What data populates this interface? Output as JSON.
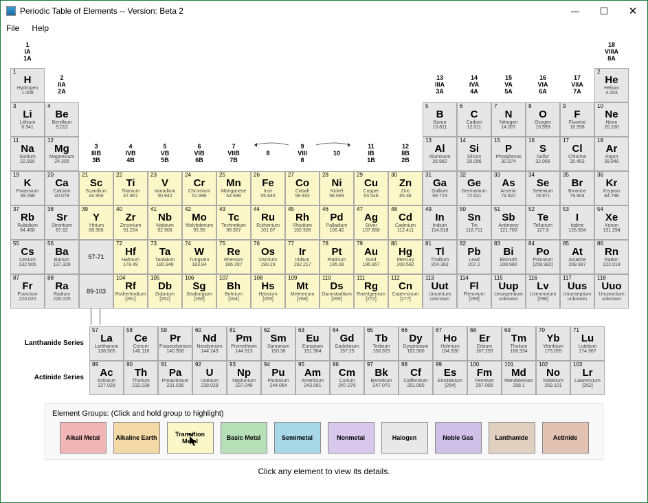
{
  "window": {
    "title": "Periodic Table of Elements  -- Version: Beta 2"
  },
  "menu": {
    "file": "File",
    "help": "Help"
  },
  "group_headers": [
    {
      "col": 0,
      "lines": [
        "1",
        "IA",
        "1A"
      ]
    },
    {
      "col": 1,
      "lines": [
        "2",
        "IIA",
        "2A"
      ]
    },
    {
      "col": 2,
      "lines": [
        "3",
        "IIIB",
        "3B"
      ]
    },
    {
      "col": 3,
      "lines": [
        "4",
        "IVB",
        "4B"
      ]
    },
    {
      "col": 4,
      "lines": [
        "5",
        "VB",
        "5B"
      ]
    },
    {
      "col": 5,
      "lines": [
        "6",
        "VIB",
        "6B"
      ]
    },
    {
      "col": 6,
      "lines": [
        "7",
        "VIIB",
        "7B"
      ]
    },
    {
      "col": 7,
      "lines": [
        "8",
        "",
        ""
      ]
    },
    {
      "col": 8,
      "lines": [
        "9",
        "VIII",
        "8"
      ]
    },
    {
      "col": 9,
      "lines": [
        "10",
        "",
        ""
      ]
    },
    {
      "col": 10,
      "lines": [
        "11",
        "IB",
        "1B"
      ]
    },
    {
      "col": 11,
      "lines": [
        "12",
        "IIB",
        "2B"
      ]
    },
    {
      "col": 12,
      "lines": [
        "13",
        "IIIA",
        "3A"
      ]
    },
    {
      "col": 13,
      "lines": [
        "14",
        "IVA",
        "4A"
      ]
    },
    {
      "col": 14,
      "lines": [
        "15",
        "VA",
        "5A"
      ]
    },
    {
      "col": 15,
      "lines": [
        "16",
        "VIA",
        "6A"
      ]
    },
    {
      "col": 16,
      "lines": [
        "17",
        "VIIA",
        "7A"
      ]
    },
    {
      "col": 17,
      "lines": [
        "18",
        "VIIIA",
        "8A"
      ]
    }
  ],
  "elements": {
    "1": {
      "s": "H",
      "n": "Hydrogen",
      "m": "1.008"
    },
    "2": {
      "s": "He",
      "n": "Helium",
      "m": "4.003"
    },
    "3": {
      "s": "Li",
      "n": "Lithium",
      "m": "6.941"
    },
    "4": {
      "s": "Be",
      "n": "Beryllium",
      "m": "9.012"
    },
    "5": {
      "s": "B",
      "n": "Boron",
      "m": "10.811"
    },
    "6": {
      "s": "C",
      "n": "Carbon",
      "m": "12.011"
    },
    "7": {
      "s": "N",
      "n": "Nitrogen",
      "m": "14.007"
    },
    "8": {
      "s": "O",
      "n": "Oxygen",
      "m": "15.999"
    },
    "9": {
      "s": "F",
      "n": "Fluorine",
      "m": "18.998"
    },
    "10": {
      "s": "Ne",
      "n": "Neon",
      "m": "20.180"
    },
    "11": {
      "s": "Na",
      "n": "Sodium",
      "m": "22.990"
    },
    "12": {
      "s": "Mg",
      "n": "Magnesium",
      "m": "24.305"
    },
    "13": {
      "s": "Al",
      "n": "Aluminum",
      "m": "26.982"
    },
    "14": {
      "s": "Si",
      "n": "Silicon",
      "m": "28.096"
    },
    "15": {
      "s": "P",
      "n": "Phosphorus",
      "m": "30.974"
    },
    "16": {
      "s": "S",
      "n": "Sulfur",
      "m": "32.066"
    },
    "17": {
      "s": "Cl",
      "n": "Chlorine",
      "m": "35.453"
    },
    "18": {
      "s": "Ar",
      "n": "Argon",
      "m": "39.948"
    },
    "19": {
      "s": "K",
      "n": "Potassium",
      "m": "39.098"
    },
    "20": {
      "s": "Ca",
      "n": "Calcium",
      "m": "40.078"
    },
    "21": {
      "s": "Sc",
      "n": "Scandium",
      "m": "44.956"
    },
    "22": {
      "s": "Ti",
      "n": "Titanium",
      "m": "47.867"
    },
    "23": {
      "s": "V",
      "n": "Vanadium",
      "m": "50.942"
    },
    "24": {
      "s": "Cr",
      "n": "Chromium",
      "m": "51.996"
    },
    "25": {
      "s": "Mn",
      "n": "Manganese",
      "m": "54.938"
    },
    "26": {
      "s": "Fe",
      "n": "Iron",
      "m": "55.845"
    },
    "27": {
      "s": "Co",
      "n": "Cobalt",
      "m": "58.933"
    },
    "28": {
      "s": "Ni",
      "n": "Nickel",
      "m": "58.693"
    },
    "29": {
      "s": "Cu",
      "n": "Copper",
      "m": "63.546"
    },
    "30": {
      "s": "Zn",
      "n": "Zinc",
      "m": "65.38"
    },
    "31": {
      "s": "Ga",
      "n": "Gallium",
      "m": "69.723"
    },
    "32": {
      "s": "Ge",
      "n": "Germanium",
      "m": "72.631"
    },
    "33": {
      "s": "As",
      "n": "Arsenic",
      "m": "74.922"
    },
    "34": {
      "s": "Se",
      "n": "Selenium",
      "m": "78.971"
    },
    "35": {
      "s": "Br",
      "n": "Bromine",
      "m": "79.904"
    },
    "36": {
      "s": "Kr",
      "n": "Krypton",
      "m": "84.798"
    },
    "37": {
      "s": "Rb",
      "n": "Rubidium",
      "m": "84.468"
    },
    "38": {
      "s": "Sr",
      "n": "Strontium",
      "m": "87.62"
    },
    "39": {
      "s": "Y",
      "n": "Yttrium",
      "m": "88.906"
    },
    "40": {
      "s": "Zr",
      "n": "Zirconium",
      "m": "91.224"
    },
    "41": {
      "s": "Nb",
      "n": "Niobium",
      "m": "92.906"
    },
    "42": {
      "s": "Mo",
      "n": "Molybdenum",
      "m": "95.95"
    },
    "43": {
      "s": "Tc",
      "n": "Technetium",
      "m": "98.907"
    },
    "44": {
      "s": "Ru",
      "n": "Ruthenium",
      "m": "101.07"
    },
    "45": {
      "s": "Rh",
      "n": "Rhodium",
      "m": "102.906"
    },
    "46": {
      "s": "Pd",
      "n": "Palladium",
      "m": "106.42"
    },
    "47": {
      "s": "Ag",
      "n": "Silver",
      "m": "107.868"
    },
    "48": {
      "s": "Cd",
      "n": "Cadmium",
      "m": "112.411"
    },
    "49": {
      "s": "In",
      "n": "Indium",
      "m": "114.818"
    },
    "50": {
      "s": "Sn",
      "n": "Tin",
      "m": "118.711"
    },
    "51": {
      "s": "Sb",
      "n": "Antimony",
      "m": "121.760"
    },
    "52": {
      "s": "Te",
      "n": "Tellurium",
      "m": "127.6"
    },
    "53": {
      "s": "I",
      "n": "Iodine",
      "m": "126.904"
    },
    "54": {
      "s": "Xe",
      "n": "Xenon",
      "m": "131.294"
    },
    "55": {
      "s": "Cs",
      "n": "Cesium",
      "m": "132.905"
    },
    "56": {
      "s": "Ba",
      "n": "Barium",
      "m": "137.328"
    },
    "72": {
      "s": "Hf",
      "n": "Hafnium",
      "m": "178.49"
    },
    "73": {
      "s": "Ta",
      "n": "Tantalum",
      "m": "180.948"
    },
    "74": {
      "s": "W",
      "n": "Tungsten",
      "m": "183.84"
    },
    "75": {
      "s": "Re",
      "n": "Rhenium",
      "m": "186.207"
    },
    "76": {
      "s": "Os",
      "n": "Osmium",
      "m": "190.23"
    },
    "77": {
      "s": "Ir",
      "n": "Iridium",
      "m": "192.217"
    },
    "78": {
      "s": "Pt",
      "n": "Platinum",
      "m": "195.08"
    },
    "79": {
      "s": "Au",
      "n": "Gold",
      "m": "196.967"
    },
    "80": {
      "s": "Hg",
      "n": "Mercury",
      "m": "200.592"
    },
    "81": {
      "s": "Tl",
      "n": "Thallium",
      "m": "204.383"
    },
    "82": {
      "s": "Pb",
      "n": "Lead",
      "m": "207.2"
    },
    "83": {
      "s": "Bi",
      "n": "Bismuth",
      "m": "208.980"
    },
    "84": {
      "s": "Po",
      "n": "Polonium",
      "m": "[208.982]"
    },
    "85": {
      "s": "At",
      "n": "Astatine",
      "m": "209.987"
    },
    "86": {
      "s": "Rn",
      "n": "Radon",
      "m": "222.018"
    },
    "87": {
      "s": "Fr",
      "n": "Francium",
      "m": "223.020"
    },
    "88": {
      "s": "Ra",
      "n": "Radium",
      "m": "226.025"
    },
    "104": {
      "s": "Rf",
      "n": "Rutherfordium",
      "m": "[261]"
    },
    "105": {
      "s": "Db",
      "n": "Dubnium",
      "m": "[262]"
    },
    "106": {
      "s": "Sg",
      "n": "Seaborgium",
      "m": "[266]"
    },
    "107": {
      "s": "Bh",
      "n": "Bohrium",
      "m": "[264]"
    },
    "108": {
      "s": "Hs",
      "n": "Hassium",
      "m": "[269]"
    },
    "109": {
      "s": "Mt",
      "n": "Meitnerium",
      "m": "[268]"
    },
    "110": {
      "s": "Ds",
      "n": "Darmstadtium",
      "m": "[269]"
    },
    "111": {
      "s": "Rg",
      "n": "Roentgenium",
      "m": "[272]"
    },
    "112": {
      "s": "Cn",
      "n": "Copernicium",
      "m": "[277]"
    },
    "113": {
      "s": "Uut",
      "n": "Ununtrium",
      "m": "unknown"
    },
    "114": {
      "s": "Fl",
      "n": "Flerovium",
      "m": "[289]"
    },
    "115": {
      "s": "Uup",
      "n": "Ununpentium",
      "m": "unknown"
    },
    "116": {
      "s": "Lv",
      "n": "Livermorium",
      "m": "[298]"
    },
    "117": {
      "s": "Uus",
      "n": "Ununseptium",
      "m": "unknown"
    },
    "118": {
      "s": "Uuo",
      "n": "Ununoctium",
      "m": "unknown"
    },
    "57": {
      "s": "La",
      "n": "Lanthanum",
      "m": "138.905"
    },
    "58": {
      "s": "Ce",
      "n": "Cerium",
      "m": "140.116"
    },
    "59": {
      "s": "Pr",
      "n": "Praseodymium",
      "m": "140.908"
    },
    "60": {
      "s": "Nd",
      "n": "Neodymium",
      "m": "144.243"
    },
    "61": {
      "s": "Pm",
      "n": "Promethium",
      "m": "144.913"
    },
    "62": {
      "s": "Sm",
      "n": "Samarium",
      "m": "150.36"
    },
    "63": {
      "s": "Eu",
      "n": "Europium",
      "m": "151.964"
    },
    "64": {
      "s": "Gd",
      "n": "Gadolinium",
      "m": "157.25"
    },
    "65": {
      "s": "Tb",
      "n": "Terbium",
      "m": "158.925"
    },
    "66": {
      "s": "Dy",
      "n": "Dysprosium",
      "m": "162.500"
    },
    "67": {
      "s": "Ho",
      "n": "Holmium",
      "m": "164.930"
    },
    "68": {
      "s": "Er",
      "n": "Erbium",
      "m": "167.259"
    },
    "69": {
      "s": "Tm",
      "n": "Thulium",
      "m": "168.934"
    },
    "70": {
      "s": "Yb",
      "n": "Ytterbium",
      "m": "173.055"
    },
    "71": {
      "s": "Lu",
      "n": "Lutetium",
      "m": "174.967"
    },
    "89": {
      "s": "Ac",
      "n": "Actinium",
      "m": "227.028"
    },
    "90": {
      "s": "Th",
      "n": "Thorium",
      "m": "232.038"
    },
    "91": {
      "s": "Pa",
      "n": "Protactinium",
      "m": "231.036"
    },
    "92": {
      "s": "U",
      "n": "Uranium",
      "m": "238.029"
    },
    "93": {
      "s": "Np",
      "n": "Neptunium",
      "m": "237.048"
    },
    "94": {
      "s": "Pu",
      "n": "Plutonium",
      "m": "244.064"
    },
    "95": {
      "s": "Am",
      "n": "Americium",
      "m": "243.061"
    },
    "96": {
      "s": "Cm",
      "n": "Curium",
      "m": "247.070"
    },
    "97": {
      "s": "Bk",
      "n": "Berkelium",
      "m": "247.070"
    },
    "98": {
      "s": "Cf",
      "n": "Californium",
      "m": "251.080"
    },
    "99": {
      "s": "Es",
      "n": "Einsteinium",
      "m": "[254]"
    },
    "100": {
      "s": "Fm",
      "n": "Fermium",
      "m": "257.095"
    },
    "101": {
      "s": "Md",
      "n": "Mendelevium",
      "m": "258.1"
    },
    "102": {
      "s": "No",
      "n": "Nobelium",
      "m": "259.101"
    },
    "103": {
      "s": "Lr",
      "n": "Lawrencium",
      "m": "[262]"
    }
  },
  "rows": [
    [
      1,
      null,
      null,
      null,
      null,
      null,
      null,
      null,
      null,
      null,
      null,
      null,
      null,
      null,
      null,
      null,
      null,
      2
    ],
    [
      3,
      4,
      null,
      null,
      null,
      null,
      null,
      null,
      null,
      null,
      null,
      null,
      5,
      6,
      7,
      8,
      9,
      10
    ],
    [
      11,
      12,
      null,
      null,
      null,
      null,
      null,
      null,
      null,
      null,
      null,
      null,
      13,
      14,
      15,
      16,
      17,
      18
    ],
    [
      19,
      20,
      21,
      22,
      23,
      24,
      25,
      26,
      27,
      28,
      29,
      30,
      31,
      32,
      33,
      34,
      35,
      36
    ],
    [
      37,
      38,
      39,
      40,
      41,
      42,
      43,
      44,
      45,
      46,
      47,
      48,
      49,
      50,
      51,
      52,
      53,
      54
    ],
    [
      55,
      56,
      "57-71",
      72,
      73,
      74,
      75,
      76,
      77,
      78,
      79,
      80,
      81,
      82,
      83,
      84,
      85,
      86
    ],
    [
      87,
      88,
      "89-103",
      104,
      105,
      106,
      107,
      108,
      109,
      110,
      111,
      112,
      113,
      114,
      115,
      116,
      117,
      118
    ]
  ],
  "highlighted": [
    21,
    22,
    23,
    24,
    25,
    26,
    27,
    28,
    29,
    30,
    39,
    40,
    41,
    42,
    43,
    44,
    45,
    46,
    47,
    48,
    72,
    73,
    74,
    75,
    76,
    77,
    78,
    79,
    80,
    104,
    105,
    106,
    107,
    108,
    109,
    110,
    111,
    112
  ],
  "series": {
    "lan_label": "Lanthanide Series",
    "act_label": "Actinide Series",
    "lan": [
      57,
      58,
      59,
      60,
      61,
      62,
      63,
      64,
      65,
      66,
      67,
      68,
      69,
      70,
      71
    ],
    "act": [
      89,
      90,
      91,
      92,
      93,
      94,
      95,
      96,
      97,
      98,
      99,
      100,
      101,
      102,
      103
    ]
  },
  "groups": {
    "title": "Element Groups:  (Click and hold group to highlight)",
    "items": [
      {
        "label": "Alkali Metal",
        "color": "#f2b6b6"
      },
      {
        "label": "Alkaline Earth",
        "color": "#f2d9a6"
      },
      {
        "label": "Transition Metal",
        "color": "#fcf7c8"
      },
      {
        "label": "Basic Metal",
        "color": "#b8e0b8"
      },
      {
        "label": "Semimetal",
        "color": "#a8d8e8"
      },
      {
        "label": "Nonmetal",
        "color": "#d8c8ec"
      },
      {
        "label": "Halogen",
        "color": "#e8e8e8"
      },
      {
        "label": "Noble Gas",
        "color": "#cfc0e8"
      },
      {
        "label": "Lanthanide",
        "color": "#e0d0c0"
      },
      {
        "label": "Actinide",
        "color": "#e2c2b2"
      }
    ]
  },
  "hint": "Click any element to view its details."
}
